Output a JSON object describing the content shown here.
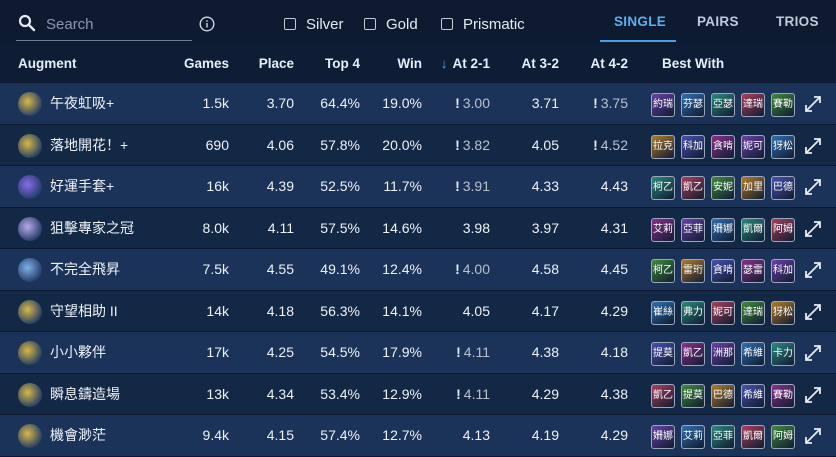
{
  "search": {
    "placeholder": "Search"
  },
  "filters": [
    {
      "label": "Silver",
      "checked": false
    },
    {
      "label": "Gold",
      "checked": false
    },
    {
      "label": "Prismatic",
      "checked": false
    }
  ],
  "modes": {
    "single": "SINGLE",
    "pairs": "PAIRS",
    "trios": "TRIOS",
    "active": "SINGLE"
  },
  "colors": {
    "accent": "#5ab0f0",
    "row_odd": "#1b3358",
    "row_even": "#132845"
  },
  "columns": {
    "augment": "Augment",
    "games": "Games",
    "place": "Place",
    "top4": "Top 4",
    "win": "Win",
    "at21": "At 2-1",
    "at32": "At 3-2",
    "at42": "At 4-2",
    "best_with": "Best With"
  },
  "rows": [
    {
      "name": "午夜虹吸+",
      "games": "1.5k",
      "place": "3.70",
      "top4": "64.4%",
      "win": "19.0%",
      "at21": "3.00",
      "at21_warn": true,
      "at32": "3.71",
      "at32_warn": false,
      "at42": "3.75",
      "at42_warn": true,
      "best": [
        "約瑞",
        "芬瑟",
        "亞瑟",
        "達瑞",
        "賽勒"
      ],
      "icon_color": "#d8b845"
    },
    {
      "name": "落地開花！+",
      "games": "690",
      "place": "4.06",
      "top4": "57.8%",
      "win": "20.0%",
      "at21": "3.82",
      "at21_warn": true,
      "at32": "4.05",
      "at32_warn": false,
      "at42": "4.52",
      "at42_warn": true,
      "best": [
        "拉克",
        "科加",
        "貪啃",
        "妮可",
        "犽松"
      ],
      "icon_color": "#d8b845"
    },
    {
      "name": "好運手套+",
      "games": "16k",
      "place": "4.39",
      "top4": "52.5%",
      "win": "11.7%",
      "at21": "3.91",
      "at21_warn": true,
      "at32": "4.33",
      "at32_warn": false,
      "at42": "4.43",
      "at42_warn": false,
      "best": [
        "柯乙",
        "凱乙",
        "安妮",
        "加里",
        "巴德"
      ],
      "icon_color": "#8a6ae8"
    },
    {
      "name": "狙擊專家之冠",
      "games": "8.0k",
      "place": "4.11",
      "top4": "57.5%",
      "win": "14.6%",
      "at21": "3.98",
      "at21_warn": false,
      "at32": "3.97",
      "at32_warn": false,
      "at42": "4.31",
      "at42_warn": false,
      "best": [
        "艾莉",
        "亞菲",
        "姍娜",
        "凱爾",
        "阿姆"
      ],
      "icon_color": "#b9a8e8"
    },
    {
      "name": "不完全飛昇",
      "games": "7.5k",
      "place": "4.55",
      "top4": "49.1%",
      "win": "12.4%",
      "at21": "4.00",
      "at21_warn": true,
      "at32": "4.58",
      "at32_warn": false,
      "at42": "4.45",
      "at42_warn": false,
      "best": [
        "柯乙",
        "雷珩",
        "貪啃",
        "瑟雷",
        "科加"
      ],
      "icon_color": "#7fb0e8"
    },
    {
      "name": "守望相助 II",
      "games": "14k",
      "place": "4.18",
      "top4": "56.3%",
      "win": "14.1%",
      "at21": "4.05",
      "at21_warn": false,
      "at32": "4.17",
      "at32_warn": false,
      "at42": "4.29",
      "at42_warn": false,
      "best": [
        "崔絲",
        "弗力",
        "妮可",
        "達瑞",
        "犽松"
      ],
      "icon_color": "#d8b845"
    },
    {
      "name": "小小夥伴",
      "games": "17k",
      "place": "4.25",
      "top4": "54.5%",
      "win": "17.9%",
      "at21": "4.11",
      "at21_warn": true,
      "at32": "4.38",
      "at32_warn": false,
      "at42": "4.18",
      "at42_warn": false,
      "best": [
        "提莫",
        "凱乙",
        "洲那",
        "希維",
        "卡力"
      ],
      "icon_color": "#d8b845"
    },
    {
      "name": "瞬息鑄造場",
      "games": "13k",
      "place": "4.34",
      "top4": "53.4%",
      "win": "12.9%",
      "at21": "4.11",
      "at21_warn": true,
      "at32": "4.29",
      "at32_warn": false,
      "at42": "4.38",
      "at42_warn": false,
      "best": [
        "凱乙",
        "提莫",
        "巴德",
        "希維",
        "賽勒"
      ],
      "icon_color": "#d8b845"
    },
    {
      "name": "機會渺茫",
      "games": "9.4k",
      "place": "4.15",
      "top4": "57.4%",
      "win": "12.7%",
      "at21": "4.13",
      "at21_warn": false,
      "at32": "4.19",
      "at32_warn": false,
      "at42": "4.29",
      "at42_warn": false,
      "best": [
        "姍娜",
        "艾莉",
        "亞菲",
        "凱爾",
        "阿姆"
      ],
      "icon_color": "#d8b845"
    }
  ]
}
